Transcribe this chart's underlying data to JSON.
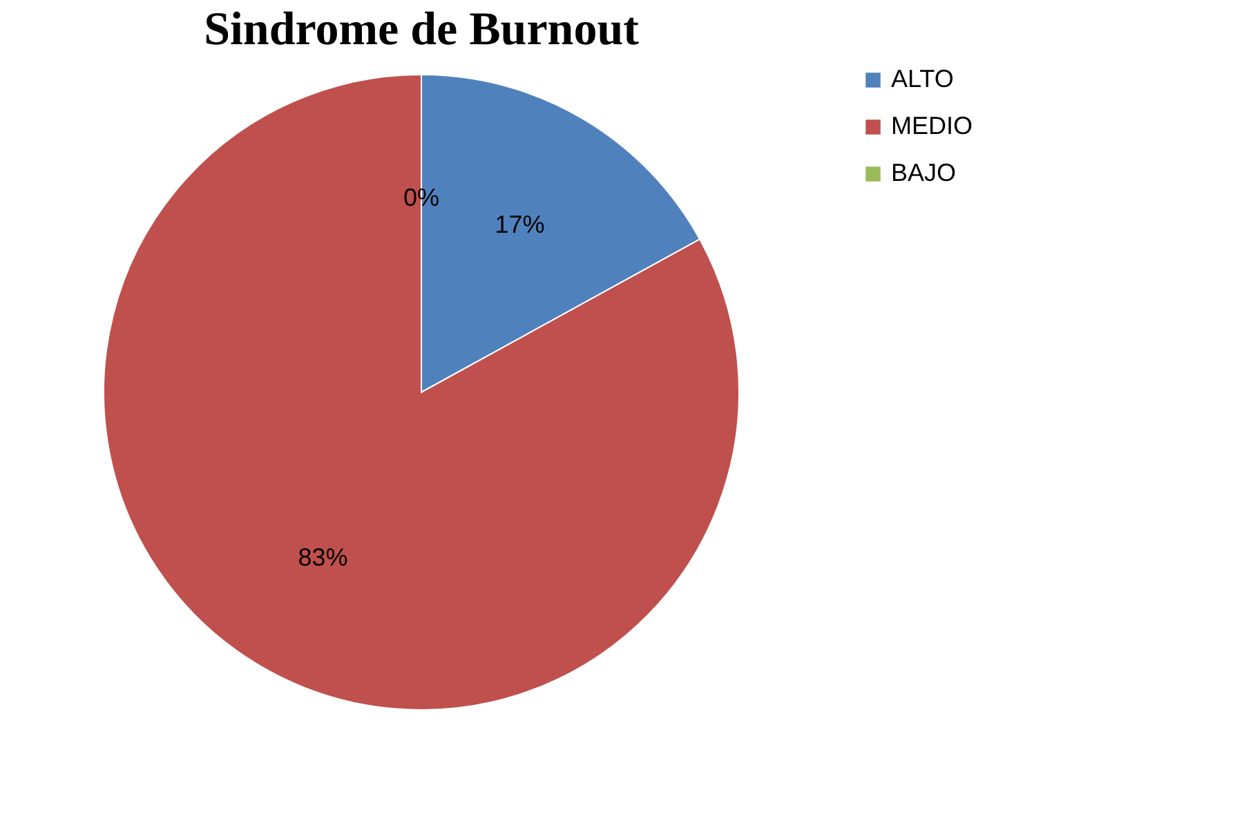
{
  "chart_data": {
    "type": "pie",
    "title": "Sindrome de Burnout",
    "categories": [
      "ALTO",
      "MEDIO",
      "BAJO"
    ],
    "values": [
      17,
      83,
      0
    ],
    "colors": [
      "#4f81bd",
      "#c0504d",
      "#9bbb59"
    ],
    "value_labels": [
      "17%",
      "83%",
      "0%"
    ],
    "legend": "right"
  }
}
